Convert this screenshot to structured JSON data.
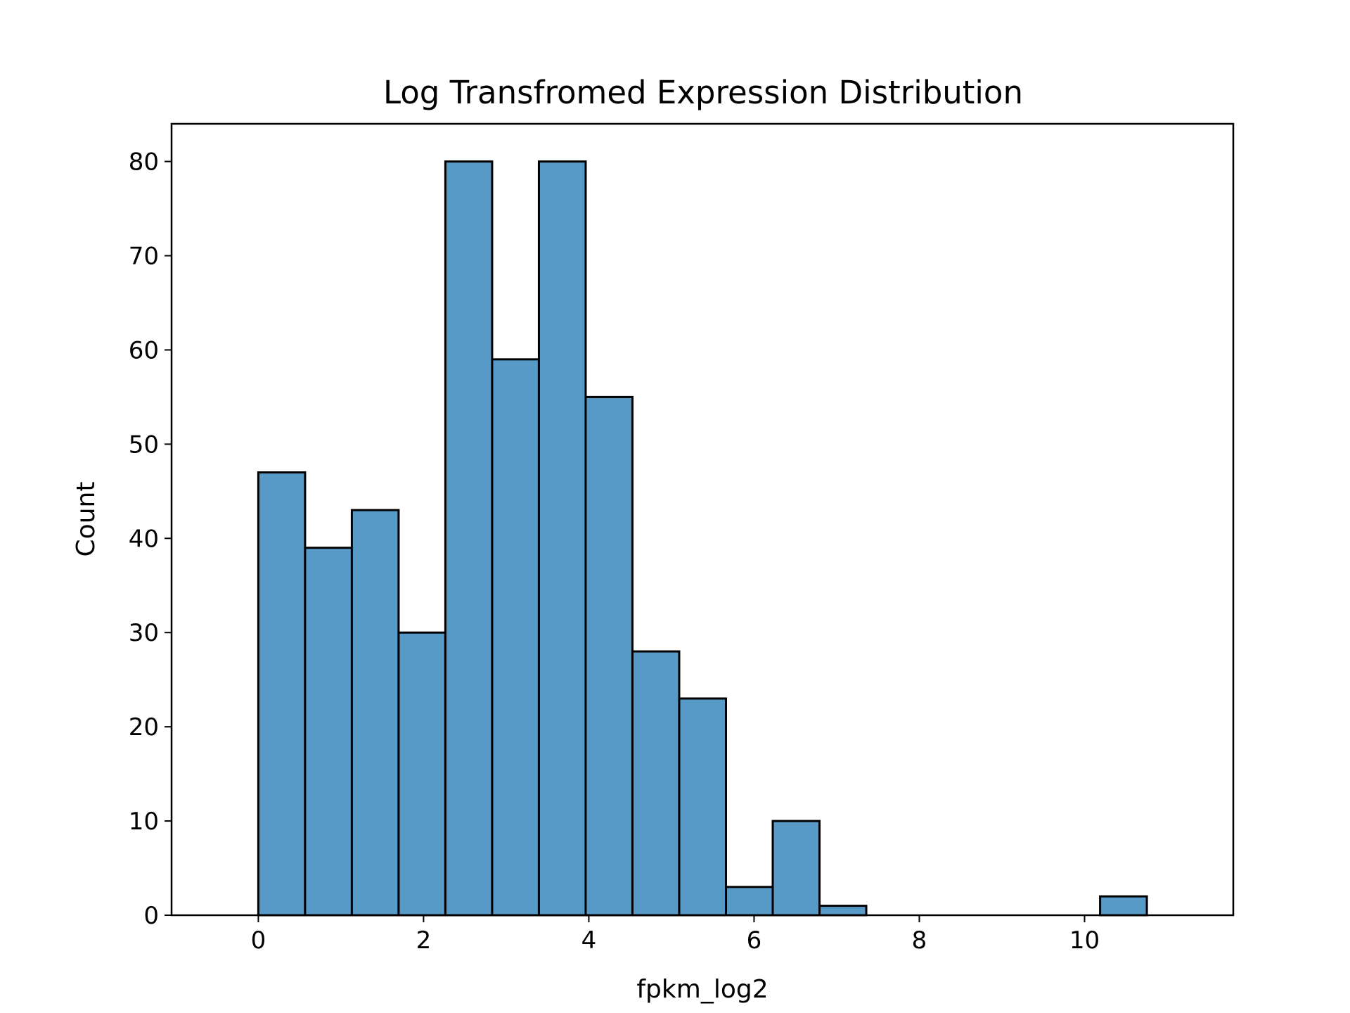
{
  "chart_data": {
    "type": "bar",
    "title": "Log Transfromed Expression Distribution",
    "xlabel": "fpkm_log2",
    "ylabel": "Count",
    "bin_edges": [
      0,
      0.566,
      1.132,
      1.698,
      2.264,
      2.83,
      3.396,
      3.962,
      4.528,
      5.094,
      5.66,
      6.226,
      6.792,
      7.358,
      7.924,
      8.49,
      9.056,
      9.622,
      10.188,
      10.754
    ],
    "values": [
      47,
      39,
      43,
      30,
      80,
      59,
      80,
      55,
      28,
      23,
      3,
      10,
      1,
      0,
      0,
      0,
      0,
      0,
      2
    ],
    "xlim": [
      -1.05,
      11.8
    ],
    "ylim": [
      0,
      84
    ],
    "xticks": [
      0,
      2,
      4,
      6,
      8,
      10
    ],
    "xtick_labels": [
      "0",
      "2",
      "4",
      "6",
      "8",
      "10"
    ],
    "yticks": [
      0,
      10,
      20,
      30,
      40,
      50,
      60,
      70,
      80
    ],
    "ytick_labels": [
      "0",
      "10",
      "20",
      "30",
      "40",
      "50",
      "60",
      "70",
      "80"
    ],
    "bar_color": "#5799c7",
    "edge_color": "#000000",
    "grid": false,
    "legend": "none"
  }
}
